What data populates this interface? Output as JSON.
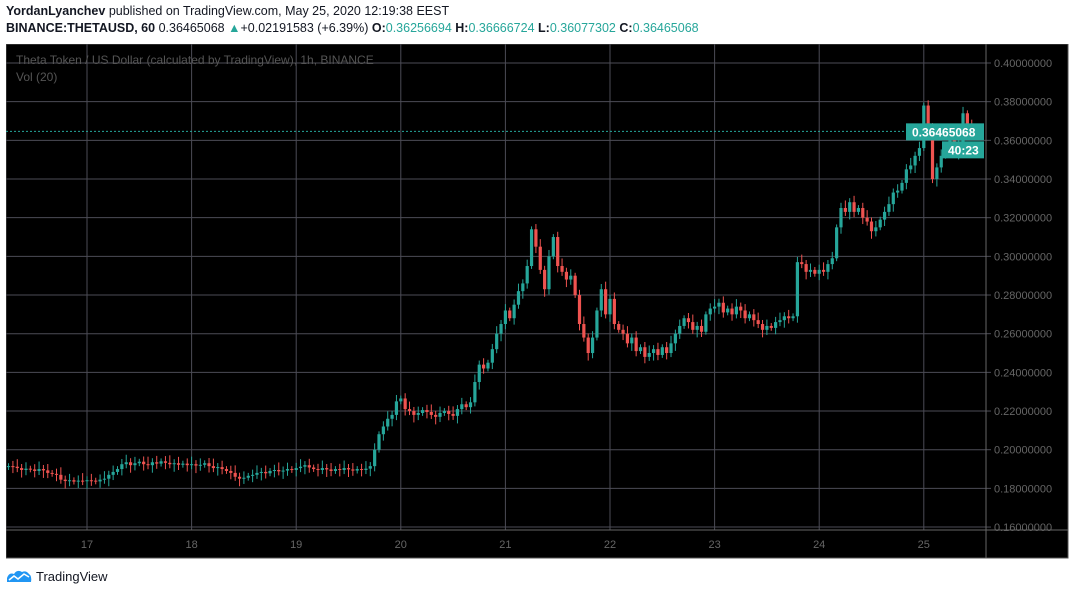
{
  "header": {
    "author": "YordanLyanchev",
    "published": "published on TradingView.com, May 25, 2020 12:19:38 EEST",
    "symbol": "BINANCE:THETAUSD, 60",
    "last": "0.36465068",
    "change": "+0.02191583 (+6.39%)",
    "o_label": "O:",
    "o": "0.36256694",
    "h_label": "H:",
    "h": "0.36666724",
    "l_label": "L:",
    "l": "0.36077302",
    "c_label": "C:",
    "c": "0.36465068"
  },
  "legend": {
    "title": "Theta Token / US Dollar (calculated by TradingView), 1h, BINANCE",
    "volume": "Vol (20)"
  },
  "footer": {
    "brand": "TradingView"
  },
  "colors": {
    "up": "#26a69a",
    "down": "#ef5350",
    "background": "#000000",
    "grid": "#4c4c56",
    "axis_text": "#666666"
  },
  "chart_data": {
    "type": "candlestick",
    "interval": "1h",
    "start": "May 16 06:00",
    "ylim": [
      0.155,
      0.41
    ],
    "y_ticks": [
      "0.16000000",
      "0.18000000",
      "0.20000000",
      "0.22000000",
      "0.24000000",
      "0.26000000",
      "0.28000000",
      "0.30000000",
      "0.32000000",
      "0.34000000",
      "0.36000000",
      "0.38000000",
      "0.40000000"
    ],
    "x_ticks": [
      "17",
      "18",
      "19",
      "20",
      "21",
      "22",
      "23",
      "24",
      "25"
    ],
    "last_price": "0.36465068",
    "countdown": "40:23",
    "first_open": 0.191,
    "closes": [
      0.1915,
      0.1912,
      0.1905,
      0.1895,
      0.1902,
      0.1898,
      0.189,
      0.19,
      0.1893,
      0.188,
      0.1875,
      0.187,
      0.1845,
      0.1838,
      0.1842,
      0.1835,
      0.184,
      0.1838,
      0.1842,
      0.184,
      0.1836,
      0.1845,
      0.185,
      0.187,
      0.1885,
      0.19,
      0.1925,
      0.1935,
      0.192,
      0.193,
      0.1938,
      0.1925,
      0.192,
      0.1935,
      0.1928,
      0.194,
      0.1932,
      0.1925,
      0.193,
      0.1922,
      0.1928,
      0.192,
      0.1925,
      0.1918,
      0.1922,
      0.193,
      0.1915,
      0.1905,
      0.191,
      0.19,
      0.189,
      0.188,
      0.186,
      0.185,
      0.1855,
      0.1865,
      0.187,
      0.188,
      0.1885,
      0.1878,
      0.189,
      0.1895,
      0.1888,
      0.1892,
      0.19,
      0.1895,
      0.1905,
      0.1912,
      0.192,
      0.1908,
      0.19,
      0.1895,
      0.1905,
      0.1898,
      0.189,
      0.19,
      0.1895,
      0.1905,
      0.1898,
      0.1892,
      0.19,
      0.1895,
      0.1902,
      0.1915,
      0.2,
      0.208,
      0.212,
      0.216,
      0.218,
      0.225,
      0.2265,
      0.221,
      0.22,
      0.218,
      0.219,
      0.2205,
      0.2195,
      0.218,
      0.217,
      0.219,
      0.22,
      0.2185,
      0.2175,
      0.221,
      0.2235,
      0.222,
      0.2245,
      0.235,
      0.244,
      0.242,
      0.245,
      0.252,
      0.26,
      0.265,
      0.272,
      0.268,
      0.275,
      0.282,
      0.286,
      0.295,
      0.314,
      0.305,
      0.293,
      0.283,
      0.3,
      0.31,
      0.295,
      0.292,
      0.288,
      0.29,
      0.28,
      0.265,
      0.258,
      0.25,
      0.258,
      0.272,
      0.283,
      0.27,
      0.278,
      0.265,
      0.262,
      0.26,
      0.255,
      0.258,
      0.251,
      0.253,
      0.248,
      0.25,
      0.252,
      0.249,
      0.253,
      0.25,
      0.255,
      0.26,
      0.264,
      0.268,
      0.266,
      0.262,
      0.264,
      0.261,
      0.27,
      0.273,
      0.274,
      0.276,
      0.271,
      0.273,
      0.27,
      0.274,
      0.272,
      0.268,
      0.27,
      0.267,
      0.265,
      0.262,
      0.264,
      0.263,
      0.266,
      0.267,
      0.269,
      0.268,
      0.269,
      0.297,
      0.296,
      0.292,
      0.293,
      0.291,
      0.293,
      0.292,
      0.296,
      0.299,
      0.315,
      0.325,
      0.323,
      0.328,
      0.323,
      0.325,
      0.32,
      0.318,
      0.313,
      0.315,
      0.319,
      0.323,
      0.327,
      0.333,
      0.334,
      0.338,
      0.345,
      0.347,
      0.352,
      0.356,
      0.378,
      0.365,
      0.34,
      0.346,
      0.352,
      0.356,
      0.36,
      0.354,
      0.359,
      0.374,
      0.368,
      0.3647
    ]
  }
}
